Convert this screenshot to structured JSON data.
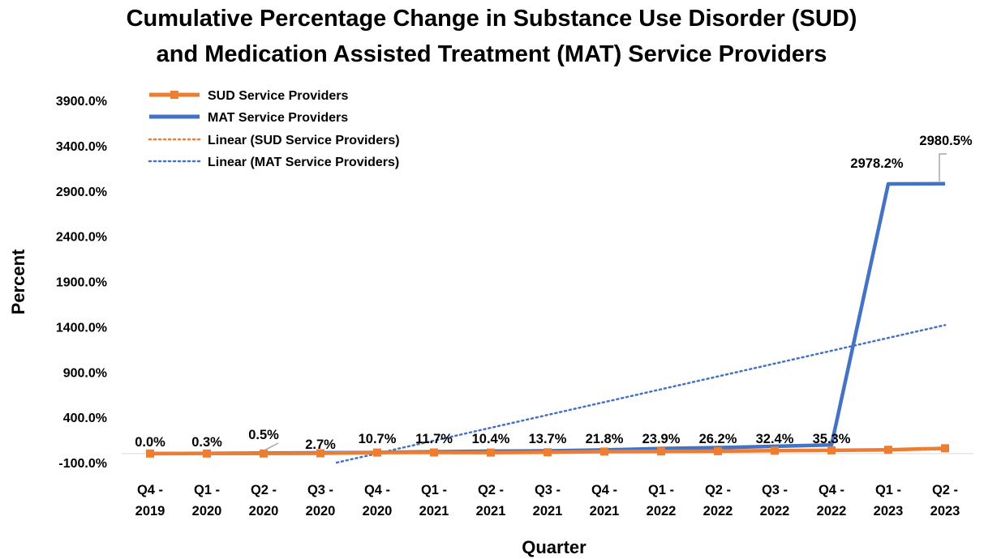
{
  "chart_data": {
    "type": "line",
    "title_lines": [
      "Cumulative Percentage Change in Substance Use Disorder (SUD)",
      "and Medication Assisted Treatment (MAT) Service Providers"
    ],
    "xlabel": "Quarter",
    "ylabel": "Percent",
    "categories": [
      [
        "Q4 -",
        "2019"
      ],
      [
        "Q1 -",
        "2020"
      ],
      [
        "Q2 -",
        "2020"
      ],
      [
        "Q3 -",
        "2020"
      ],
      [
        "Q4 -",
        "2020"
      ],
      [
        "Q1 -",
        "2021"
      ],
      [
        "Q2 -",
        "2021"
      ],
      [
        "Q3 -",
        "2021"
      ],
      [
        "Q4 -",
        "2021"
      ],
      [
        "Q1 -",
        "2022"
      ],
      [
        "Q2 -",
        "2022"
      ],
      [
        "Q3 -",
        "2022"
      ],
      [
        "Q4 -",
        "2022"
      ],
      [
        "Q1 -",
        "2023"
      ],
      [
        "Q2 -",
        "2023"
      ]
    ],
    "ylim": [
      -100,
      3900
    ],
    "yticks": [
      -100,
      400,
      900,
      1400,
      1900,
      2400,
      2900,
      3400,
      3900
    ],
    "ytick_labels": [
      "-100.0%",
      "400.0%",
      "900.0%",
      "1400.0%",
      "1900.0%",
      "2400.0%",
      "2900.0%",
      "3400.0%",
      "3900.0%"
    ],
    "grid": false,
    "legend_position": "top-left",
    "series": [
      {
        "name": "SUD Service Providers",
        "color": "#ED7D31",
        "style": "solid-square-markers",
        "values": [
          0.0,
          0.3,
          0.5,
          2.7,
          10.7,
          11.7,
          10.4,
          13.7,
          21.8,
          23.9,
          26.2,
          32.4,
          35.3,
          41,
          58
        ],
        "data_labels": [
          "0.0%",
          "0.3%",
          "0.5%",
          "2.7%",
          "10.7%",
          "11.7%",
          "10.4%",
          "13.7%",
          "21.8%",
          "23.9%",
          "26.2%",
          "32.4%",
          "35.3%",
          "",
          ""
        ]
      },
      {
        "name": "MAT Service Providers",
        "color": "#4472C4",
        "style": "solid",
        "values": [
          0,
          2,
          5,
          8,
          12,
          20,
          26,
          30,
          40,
          55,
          65,
          80,
          95,
          2978.2,
          2980.5
        ],
        "data_labels": [
          "",
          "",
          "",
          "",
          "",
          "",
          "",
          "",
          "",
          "",
          "",
          "",
          "",
          "2978.2%",
          "2980.5%"
        ]
      },
      {
        "name": "Linear (SUD Service Providers)",
        "color": "#ED7D31",
        "style": "dotted",
        "trend_of": 0
      },
      {
        "name": "Linear (MAT Service Providers)",
        "color": "#4472C4",
        "style": "dotted",
        "trend_of": 1
      }
    ]
  }
}
